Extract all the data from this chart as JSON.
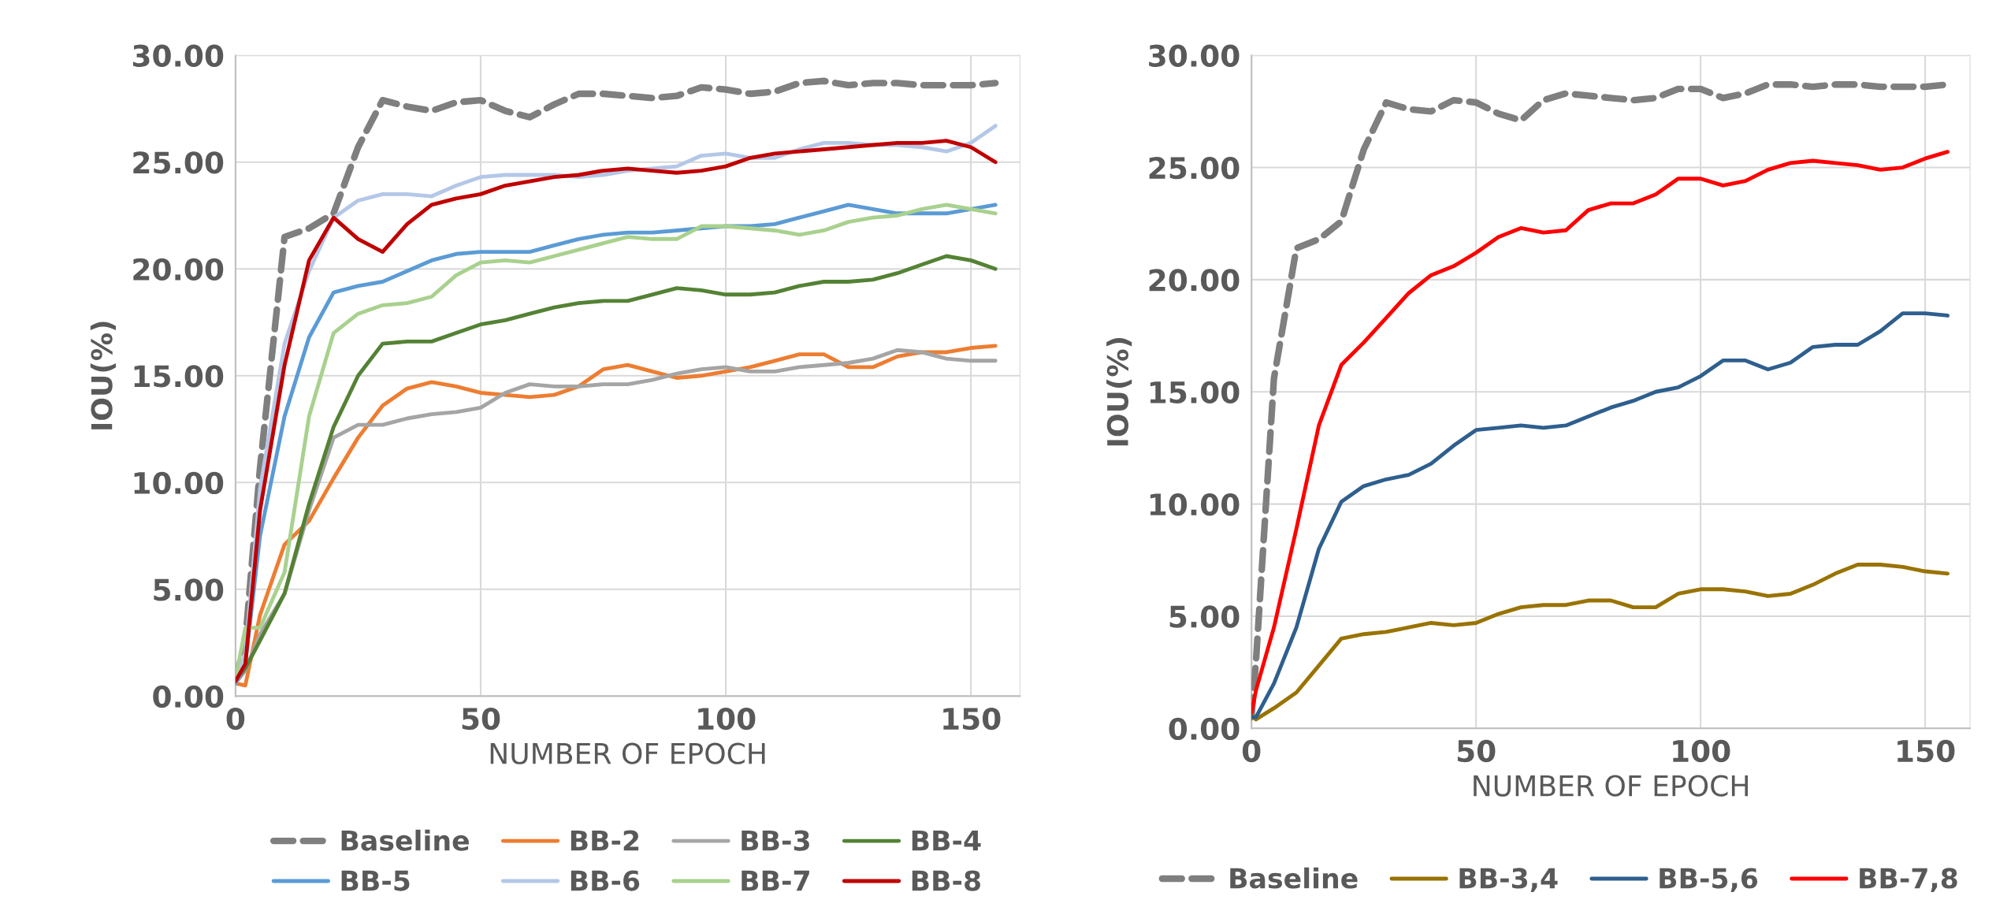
{
  "chart_data": [
    {
      "type": "line",
      "xlabel": "NUMBER OF EPOCH",
      "ylabel": "IOU(%)",
      "xlim": [
        0,
        160
      ],
      "ylim": [
        0,
        30
      ],
      "xticks": [
        0,
        50,
        100,
        150
      ],
      "yticks": [
        {
          "value": 0,
          "label": "0.00"
        },
        {
          "value": 5,
          "label": "5.00"
        },
        {
          "value": 10,
          "label": "10.00"
        },
        {
          "value": 15,
          "label": "15.00"
        },
        {
          "value": 20,
          "label": "20.00"
        },
        {
          "value": 25,
          "label": "25.00"
        },
        {
          "value": 30,
          "label": "30.00"
        }
      ],
      "grid": true,
      "legend": "bottom",
      "marker": "none",
      "x": [
        0,
        2,
        5,
        10,
        15,
        20,
        25,
        30,
        35,
        40,
        45,
        50,
        55,
        60,
        65,
        70,
        75,
        80,
        85,
        90,
        95,
        100,
        105,
        110,
        115,
        120,
        125,
        130,
        135,
        140,
        145,
        150,
        155
      ],
      "series": [
        {
          "name": "Baseline",
          "color": "#7f7f7f",
          "line_style": "dashed",
          "values": [
            0.7,
            2.6,
            10.7,
            21.5,
            21.9,
            22.6,
            25.7,
            27.9,
            27.6,
            27.4,
            27.8,
            27.9,
            27.4,
            27.1,
            27.7,
            28.2,
            28.2,
            28.1,
            28.0,
            28.1,
            28.5,
            28.4,
            28.2,
            28.3,
            28.7,
            28.8,
            28.6,
            28.7,
            28.7,
            28.6,
            28.6,
            28.6,
            28.7
          ]
        },
        {
          "name": "BB-2",
          "color": "#ed7d31",
          "values": [
            0.6,
            0.5,
            3.8,
            7.1,
            8.2,
            10.2,
            12.1,
            13.6,
            14.4,
            14.7,
            14.5,
            14.2,
            14.1,
            14.0,
            14.1,
            14.5,
            15.3,
            15.5,
            15.2,
            14.9,
            15.0,
            15.2,
            15.4,
            15.7,
            16.0,
            16.0,
            15.4,
            15.4,
            15.9,
            16.1,
            16.1,
            16.3,
            16.4
          ]
        },
        {
          "name": "BB-3",
          "color": "#a5a5a5",
          "values": [
            0.6,
            1.2,
            2.9,
            4.8,
            8.7,
            12.1,
            12.7,
            12.7,
            13.0,
            13.2,
            13.3,
            13.5,
            14.2,
            14.6,
            14.5,
            14.5,
            14.6,
            14.6,
            14.8,
            15.1,
            15.3,
            15.4,
            15.2,
            15.2,
            15.4,
            15.5,
            15.6,
            15.8,
            16.2,
            16.1,
            15.8,
            15.7,
            15.7
          ]
        },
        {
          "name": "BB-4",
          "color": "#548235",
          "values": [
            0.7,
            1.3,
            2.6,
            4.8,
            9.0,
            12.6,
            15.0,
            16.5,
            16.6,
            16.6,
            17.0,
            17.4,
            17.6,
            17.9,
            18.2,
            18.4,
            18.5,
            18.5,
            18.8,
            19.1,
            19.0,
            18.8,
            18.8,
            18.9,
            19.2,
            19.4,
            19.4,
            19.5,
            19.8,
            20.2,
            20.6,
            20.4,
            20.0
          ]
        },
        {
          "name": "BB-5",
          "color": "#5b9bd5",
          "values": [
            0.6,
            1.5,
            7.5,
            13.1,
            16.8,
            18.9,
            19.2,
            19.4,
            19.9,
            20.4,
            20.7,
            20.8,
            20.8,
            20.8,
            21.1,
            21.4,
            21.6,
            21.7,
            21.7,
            21.8,
            21.9,
            22.0,
            22.0,
            22.1,
            22.4,
            22.7,
            23.0,
            22.8,
            22.6,
            22.6,
            22.6,
            22.8,
            23.0
          ]
        },
        {
          "name": "BB-6",
          "color": "#b4c7e7",
          "values": [
            0.7,
            2.0,
            9.7,
            16.5,
            19.9,
            22.4,
            23.2,
            23.5,
            23.5,
            23.4,
            23.9,
            24.3,
            24.4,
            24.4,
            24.4,
            24.3,
            24.4,
            24.6,
            24.7,
            24.8,
            25.3,
            25.4,
            25.2,
            25.2,
            25.6,
            25.9,
            25.9,
            25.8,
            25.8,
            25.7,
            25.5,
            25.9,
            26.7
          ]
        },
        {
          "name": "BB-7",
          "color": "#a9d18e",
          "values": [
            0.8,
            3.2,
            3.2,
            5.8,
            13.1,
            17.0,
            17.9,
            18.3,
            18.4,
            18.7,
            19.7,
            20.3,
            20.4,
            20.3,
            20.6,
            20.9,
            21.2,
            21.5,
            21.4,
            21.4,
            22.0,
            22.0,
            21.9,
            21.8,
            21.6,
            21.8,
            22.2,
            22.4,
            22.5,
            22.8,
            23.0,
            22.8,
            22.6
          ]
        },
        {
          "name": "BB-8",
          "color": "#c00000",
          "values": [
            0.7,
            1.5,
            8.7,
            15.5,
            20.4,
            22.4,
            21.4,
            20.8,
            22.1,
            23.0,
            23.3,
            23.5,
            23.9,
            24.1,
            24.3,
            24.4,
            24.6,
            24.7,
            24.6,
            24.5,
            24.6,
            24.8,
            25.2,
            25.4,
            25.5,
            25.6,
            25.7,
            25.8,
            25.9,
            25.9,
            26.0,
            25.7,
            25.0
          ]
        }
      ]
    },
    {
      "type": "line",
      "xlabel": "NUMBER OF EPOCH",
      "ylabel": "IOU(%)",
      "xlim": [
        0,
        160
      ],
      "ylim": [
        0,
        30
      ],
      "xticks": [
        0,
        50,
        100,
        150
      ],
      "yticks": [
        {
          "value": 0,
          "label": "0.00"
        },
        {
          "value": 5,
          "label": "5.00"
        },
        {
          "value": 10,
          "label": "10.00"
        },
        {
          "value": 15,
          "label": "15.00"
        },
        {
          "value": 20,
          "label": "20.00"
        },
        {
          "value": 25,
          "label": "25.00"
        },
        {
          "value": 30,
          "label": "30.00"
        }
      ],
      "grid": true,
      "legend": "bottom",
      "marker": "none",
      "x": [
        0,
        1,
        5,
        10,
        15,
        20,
        25,
        30,
        35,
        40,
        45,
        50,
        55,
        60,
        65,
        70,
        75,
        80,
        85,
        90,
        95,
        100,
        105,
        110,
        115,
        120,
        125,
        130,
        135,
        140,
        145,
        150,
        155
      ],
      "series": [
        {
          "name": "Baseline",
          "color": "#7f7f7f",
          "line_style": "dashed",
          "values": [
            0.5,
            3.0,
            15.6,
            21.4,
            21.8,
            22.6,
            25.8,
            27.9,
            27.6,
            27.5,
            28.0,
            27.9,
            27.4,
            27.1,
            28.0,
            28.3,
            28.2,
            28.1,
            28.0,
            28.1,
            28.5,
            28.5,
            28.1,
            28.3,
            28.7,
            28.7,
            28.6,
            28.7,
            28.7,
            28.6,
            28.6,
            28.6,
            28.7
          ]
        },
        {
          "name": "BB-3,4",
          "color": "#997300",
          "values": [
            0.6,
            0.4,
            0.9,
            1.6,
            2.8,
            4.0,
            4.2,
            4.3,
            4.5,
            4.7,
            4.6,
            4.7,
            5.1,
            5.4,
            5.5,
            5.5,
            5.7,
            5.7,
            5.4,
            5.4,
            6.0,
            6.2,
            6.2,
            6.1,
            5.9,
            6.0,
            6.4,
            6.9,
            7.3,
            7.3,
            7.2,
            7.0,
            6.9
          ]
        },
        {
          "name": "BB-5,6",
          "color": "#2e5f8e",
          "values": [
            0.5,
            0.5,
            2.0,
            4.5,
            8.0,
            10.1,
            10.8,
            11.1,
            11.3,
            11.8,
            12.6,
            13.3,
            13.4,
            13.5,
            13.4,
            13.5,
            13.9,
            14.3,
            14.6,
            15.0,
            15.2,
            15.7,
            16.4,
            16.4,
            16.0,
            16.3,
            17.0,
            17.1,
            17.1,
            17.7,
            18.5,
            18.5,
            18.4
          ]
        },
        {
          "name": "BB-7,8",
          "color": "#ff0000",
          "values": [
            0.7,
            1.7,
            4.5,
            8.9,
            13.5,
            16.2,
            17.2,
            18.3,
            19.4,
            20.2,
            20.6,
            21.2,
            21.9,
            22.3,
            22.1,
            22.2,
            23.1,
            23.4,
            23.4,
            23.8,
            24.5,
            24.5,
            24.2,
            24.4,
            24.9,
            25.2,
            25.3,
            25.2,
            25.1,
            24.9,
            25.0,
            25.4,
            25.7
          ]
        }
      ]
    }
  ]
}
